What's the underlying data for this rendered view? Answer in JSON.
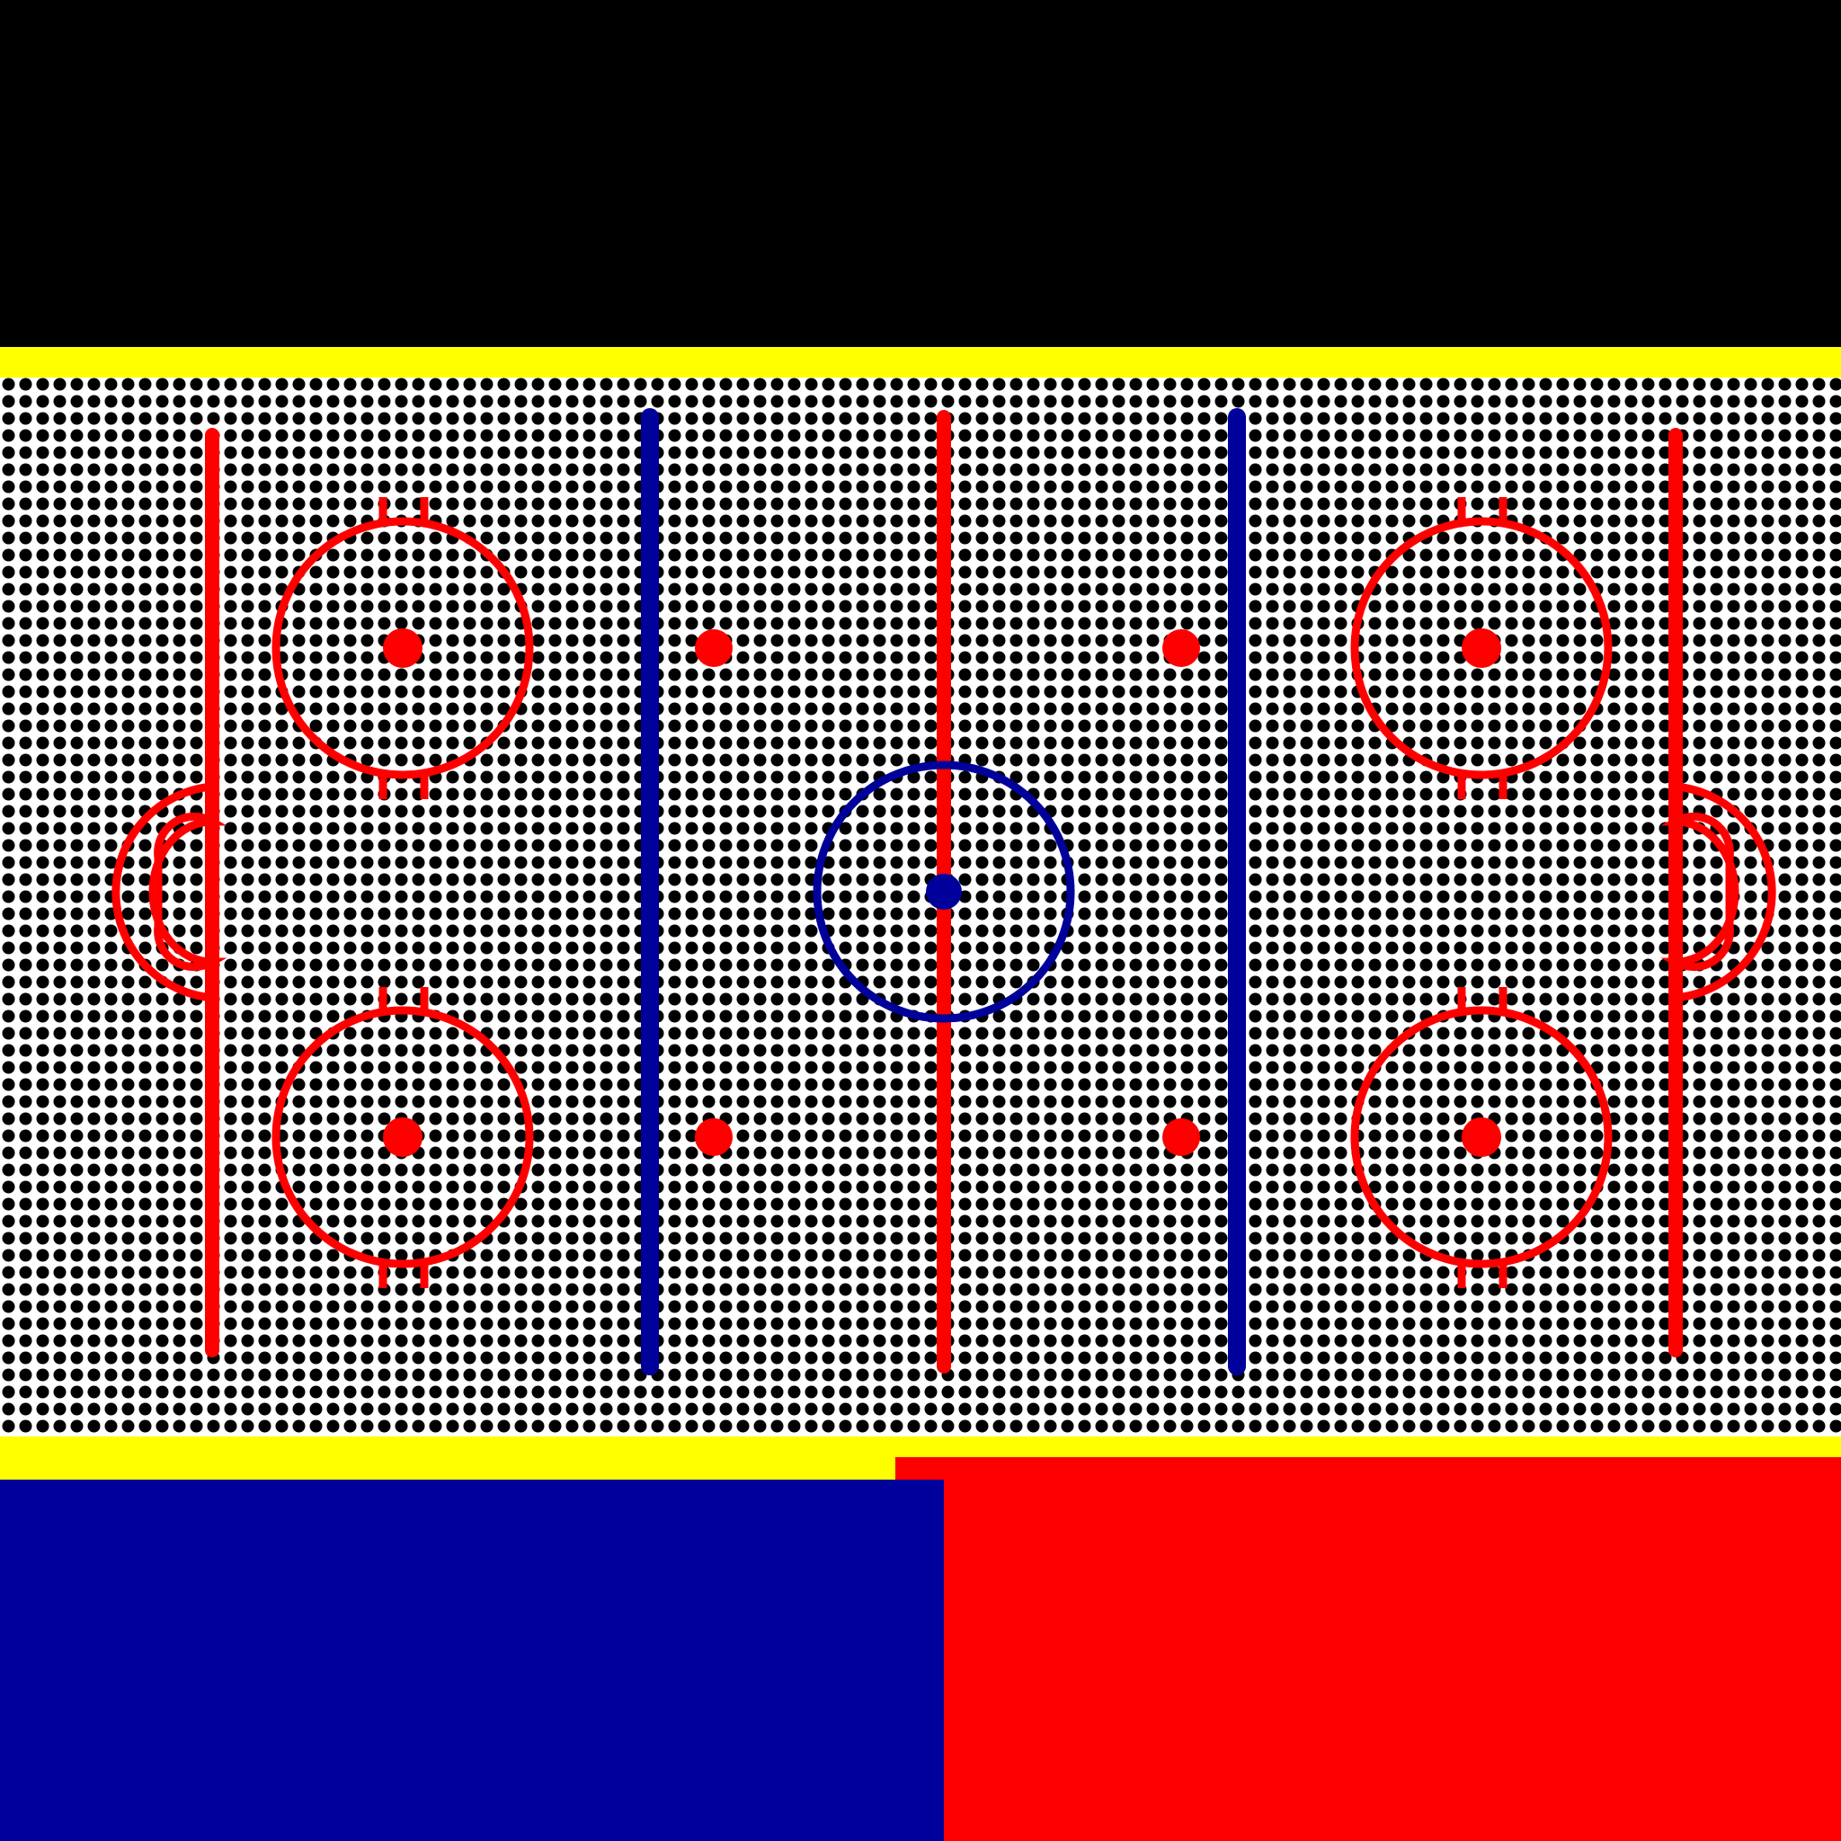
{
  "game": {
    "type": "ice-hockey",
    "view": "top-down rink"
  },
  "colors": {
    "background": "#000000",
    "board": "#ffff00",
    "ice": "#ffffff",
    "dot_pattern": "#000000",
    "red_line": "#ff0000",
    "blue_line": "#00009a",
    "team_left": "#00009a",
    "team_right": "#ff0000"
  },
  "rink": {
    "markings": [
      "goal-line-left",
      "blue-line-left",
      "center-red-line",
      "blue-line-right",
      "goal-line-right",
      "center-faceoff-circle",
      "center-faceoff-spot",
      "end-zone-faceoff-circles",
      "neutral-zone-faceoff-spots",
      "goal-creases"
    ]
  },
  "panels": {
    "left_team": {
      "color": "#00009a"
    },
    "right_team": {
      "color": "#ff0000"
    }
  }
}
